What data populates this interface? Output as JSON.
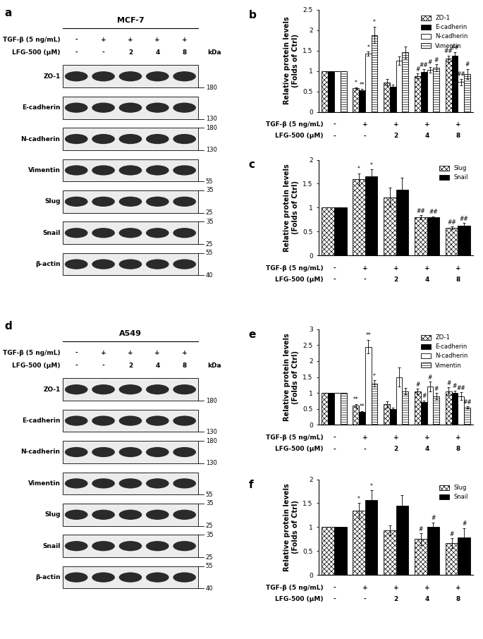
{
  "chart_data": [
    {
      "panel": "b",
      "type": "bar",
      "categories": [
        null,
        null,
        null,
        null,
        null
      ],
      "tick_labels": "y",
      "ylabel": "Relative protein levels\n(Folds of Ctrl)",
      "ylim": [
        0,
        2.5
      ],
      "yticks": [
        0,
        0.5,
        1,
        1.5,
        2,
        2.5
      ],
      "legend": "upper right",
      "conditions": [
        {
          "label": "TGF-β (5 ng/mL)",
          "values": [
            "-",
            "+",
            "+",
            "+",
            "+"
          ]
        },
        {
          "label": "LFG-500 (μM)",
          "values": [
            "-",
            "-",
            "2",
            "4",
            "8"
          ]
        }
      ],
      "series": [
        {
          "name": "ZO-1",
          "color": "#ffffff",
          "marker": "checkered",
          "values": [
            1,
            0.57,
            0.72,
            0.88,
            1.3
          ],
          "errors": [
            0,
            0.03,
            0.08,
            0.06,
            0.08
          ],
          "annotations": [
            null,
            "*",
            null,
            "#",
            "##"
          ]
        },
        {
          "name": "E-cadherin",
          "color": "#000000",
          "marker": "solid",
          "values": [
            1,
            0.52,
            0.62,
            0.97,
            1.38
          ],
          "errors": [
            0,
            0.04,
            0.05,
            0.07,
            0.08
          ],
          "annotations": [
            null,
            "**",
            null,
            "##",
            "##"
          ]
        },
        {
          "name": "N-cadherin",
          "color": "#ffffff",
          "marker": "solid",
          "values": [
            1,
            1.42,
            1.25,
            1.03,
            0.73
          ],
          "errors": [
            0,
            0.05,
            0.1,
            0.07,
            0.08
          ],
          "annotations": [
            null,
            "*",
            null,
            "#",
            "##"
          ]
        },
        {
          "name": "Vimentin",
          "color": "#ffffff",
          "marker": "horizontal",
          "values": [
            1,
            1.88,
            1.45,
            1.08,
            0.93
          ],
          "errors": [
            0,
            0.2,
            0.14,
            0.08,
            0.12
          ],
          "annotations": [
            null,
            "*",
            null,
            "#",
            "#"
          ]
        }
      ]
    },
    {
      "panel": "c",
      "type": "bar",
      "categories": [
        null,
        null,
        null,
        null,
        null
      ],
      "tick_labels": "y",
      "ylabel": "Relative protein levels\n(Folds of Ctrl)",
      "ylim": [
        0,
        2
      ],
      "yticks": [
        0,
        0.5,
        1,
        1.5,
        2
      ],
      "legend": "upper right",
      "conditions": [
        {
          "label": "TGF-β (5 ng/mL)",
          "values": [
            "-",
            "+",
            "+",
            "+",
            "+"
          ]
        },
        {
          "label": "LFG-500 (μM)",
          "values": [
            "-",
            "-",
            "2",
            "4",
            "8"
          ]
        }
      ],
      "series": [
        {
          "name": "Slug",
          "color": "#ffffff",
          "marker": "checkered",
          "values": [
            1,
            1.6,
            1.22,
            0.8,
            0.58
          ],
          "errors": [
            0,
            0.12,
            0.2,
            0.04,
            0.03
          ],
          "annotations": [
            null,
            "*",
            null,
            "##",
            "##"
          ]
        },
        {
          "name": "Snail",
          "color": "#000000",
          "marker": "solid",
          "values": [
            1,
            1.65,
            1.38,
            0.8,
            0.62
          ],
          "errors": [
            0,
            0.15,
            0.25,
            0.02,
            0.06
          ],
          "annotations": [
            null,
            "*",
            null,
            "##",
            "##"
          ]
        }
      ]
    },
    {
      "panel": "e",
      "type": "bar",
      "categories": [
        null,
        null,
        null,
        null,
        null
      ],
      "tick_labels": "y",
      "ylabel": "Relative protein levels\n(Folds of Ctrl)",
      "ylim": [
        0,
        3
      ],
      "yticks": [
        0,
        0.5,
        1,
        1.5,
        2,
        2.5,
        3
      ],
      "legend": "upper right",
      "conditions": [
        {
          "label": "TGF-β (5 ng/mL)",
          "values": [
            "-",
            "+",
            "+",
            "+",
            "+"
          ]
        },
        {
          "label": "LFG-500 (μM)",
          "values": [
            "-",
            "-",
            "2",
            "4",
            "8"
          ]
        }
      ],
      "series": [
        {
          "name": "ZO-1",
          "color": "#ffffff",
          "marker": "checkered",
          "values": [
            1,
            0.6,
            0.65,
            1.05,
            1.05
          ],
          "errors": [
            0,
            0.06,
            0.1,
            0.08,
            0.12
          ],
          "annotations": [
            null,
            "**",
            null,
            "#",
            "#"
          ]
        },
        {
          "name": "E-cadherin",
          "color": "#000000",
          "marker": "solid",
          "values": [
            1,
            0.4,
            0.5,
            0.72,
            1.0
          ],
          "errors": [
            0,
            0.04,
            0.03,
            0.05,
            0.08
          ],
          "annotations": [
            null,
            "**",
            null,
            "#",
            "#"
          ]
        },
        {
          "name": "N-cadherin",
          "color": "#ffffff",
          "marker": "solid",
          "values": [
            1,
            2.45,
            1.5,
            1.2,
            0.9
          ],
          "errors": [
            0,
            0.22,
            0.3,
            0.15,
            0.12
          ],
          "annotations": [
            null,
            "**",
            null,
            "#",
            "##"
          ]
        },
        {
          "name": "Vimentin",
          "color": "#ffffff",
          "marker": "horizontal",
          "values": [
            1,
            1.3,
            1.05,
            0.9,
            0.55
          ],
          "errors": [
            0,
            0.1,
            0.1,
            0.1,
            0.03
          ],
          "annotations": [
            null,
            "*",
            null,
            "#",
            "##"
          ]
        }
      ]
    },
    {
      "panel": "f",
      "type": "bar",
      "categories": [
        null,
        null,
        null,
        null,
        null
      ],
      "tick_labels": "y",
      "ylabel": "Relative protein levels\n(Folds of Ctrl)",
      "ylim": [
        0,
        2
      ],
      "yticks": [
        0,
        0.5,
        1,
        1.5,
        2
      ],
      "legend": "upper right",
      "conditions": [
        {
          "label": "TGF-β (5 ng/mL)",
          "values": [
            "-",
            "+",
            "+",
            "+",
            "+"
          ]
        },
        {
          "label": "LFG-500 (μM)",
          "values": [
            "-",
            "-",
            "2",
            "4",
            "8"
          ]
        }
      ],
      "series": [
        {
          "name": "Slug",
          "color": "#ffffff",
          "marker": "checkered",
          "values": [
            1,
            1.35,
            0.93,
            0.75,
            0.67
          ],
          "errors": [
            0,
            0.15,
            0.1,
            0.12,
            0.1
          ],
          "annotations": [
            null,
            "*",
            null,
            "#",
            "#"
          ]
        },
        {
          "name": "Snail",
          "color": "#000000",
          "marker": "solid",
          "values": [
            1,
            1.57,
            1.45,
            1.0,
            0.78
          ],
          "errors": [
            0,
            0.2,
            0.22,
            0.1,
            0.2
          ],
          "annotations": [
            null,
            "*",
            null,
            "#",
            "#"
          ]
        }
      ]
    }
  ],
  "blots": [
    {
      "panel": "a",
      "title": "MCF-7",
      "unit": "kDa",
      "conditions": [
        {
          "label": "TGF-β (5 ng/mL)",
          "values": [
            "-",
            "+",
            "+",
            "+",
            "+"
          ]
        },
        {
          "label": "LFG-500 (μM)",
          "values": [
            "-",
            "-",
            "2",
            "4",
            "8"
          ]
        }
      ],
      "rows": [
        {
          "name": "ZO-1",
          "markers": [
            180
          ]
        },
        {
          "name": "E-cadherin",
          "markers": [
            130
          ]
        },
        {
          "name": "N-cadherin",
          "markers": [
            180,
            130
          ]
        },
        {
          "name": "Vimentin",
          "markers": [
            55
          ]
        },
        {
          "name": "Slug",
          "markers": [
            35,
            25
          ]
        },
        {
          "name": "Snail",
          "markers": [
            35,
            25
          ]
        },
        {
          "name": "β-actin",
          "markers": [
            55,
            40
          ]
        }
      ]
    },
    {
      "panel": "d",
      "title": "A549",
      "unit": "kDa",
      "conditions": [
        {
          "label": "TGF-β (5 ng/mL)",
          "values": [
            "-",
            "+",
            "+",
            "+",
            "+"
          ]
        },
        {
          "label": "LFG-500 (μM)",
          "values": [
            "-",
            "-",
            "2",
            "4",
            "8"
          ]
        }
      ],
      "rows": [
        {
          "name": "ZO-1",
          "markers": [
            180
          ]
        },
        {
          "name": "E-cadherin",
          "markers": [
            130
          ]
        },
        {
          "name": "N-cadherin",
          "markers": [
            180,
            130
          ]
        },
        {
          "name": "Vimentin",
          "markers": [
            55
          ]
        },
        {
          "name": "Slug",
          "markers": [
            35,
            25
          ]
        },
        {
          "name": "Snail",
          "markers": [
            35,
            25
          ]
        },
        {
          "name": "β-actin",
          "markers": [
            55,
            40
          ]
        }
      ]
    }
  ]
}
